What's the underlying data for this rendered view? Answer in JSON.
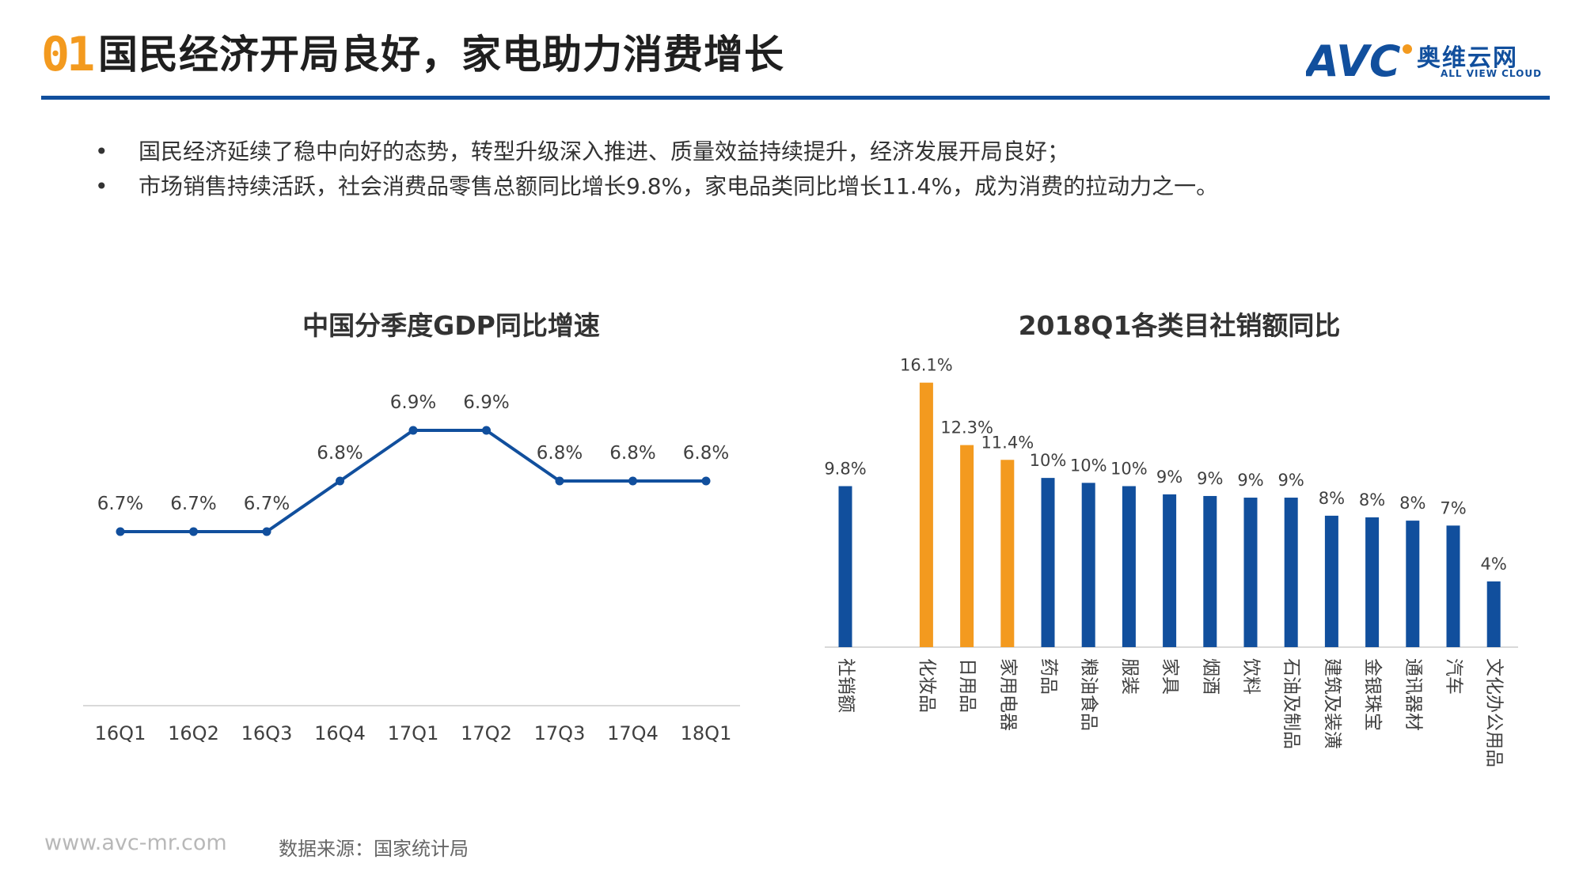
{
  "header": {
    "section_number": "01",
    "title": "国民经济开局良好，家电助力消费增长",
    "logo_mark": "AVC",
    "logo_name_zh": "奥维云网",
    "logo_name_en": "ALL VIEW CLOUD"
  },
  "bullets": [
    {
      "dot": "•",
      "text": "国民经济延续了稳中向好的态势，转型升级深入推进、质量效益持续提升，经济发展开局良好；"
    },
    {
      "dot": "•",
      "text": "市场销售持续活跃，社会消费品零售总额同比增长9.8%，家电品类同比增长11.4%，成为消费的拉动力之一。"
    }
  ],
  "colors": {
    "primary": "#114f9d",
    "accent": "#f39a1f",
    "axis": "#d9d9d9"
  },
  "chart_data": [
    {
      "type": "line",
      "title": "中国分季度GDP同比增速",
      "categories": [
        "16Q1",
        "16Q2",
        "16Q3",
        "16Q4",
        "17Q1",
        "17Q2",
        "17Q3",
        "17Q4",
        "18Q1"
      ],
      "values": [
        6.7,
        6.7,
        6.7,
        6.8,
        6.9,
        6.9,
        6.8,
        6.8,
        6.8
      ],
      "labels": [
        "6.7%",
        "6.7%",
        "6.7%",
        "6.8%",
        "6.9%",
        "6.9%",
        "6.8%",
        "6.8%",
        "6.8%"
      ],
      "ylim": [
        6.55,
        6.95
      ],
      "grid": false
    },
    {
      "type": "bar",
      "title": "2018Q1各类目社销额同比",
      "categories": [
        "社销额",
        "",
        "化妆品",
        "日用品",
        "家用电器",
        "药品",
        "粮油食品",
        "服装",
        "家具",
        "烟酒",
        "饮料",
        "石油及制品",
        "建筑及装潢",
        "金银珠宝",
        "通讯器材",
        "汽车",
        "文化办公用品"
      ],
      "values": [
        9.8,
        null,
        16.1,
        12.3,
        11.4,
        10.3,
        10.0,
        9.8,
        9.3,
        9.2,
        9.1,
        9.1,
        8.0,
        7.9,
        7.7,
        7.4,
        4.0
      ],
      "labels": [
        "9.8%",
        "",
        "16.1%",
        "12.3%",
        "11.4%",
        "10%",
        "10%",
        "10%",
        "9%",
        "9%",
        "9%",
        "9%",
        "8%",
        "8%",
        "8%",
        "7%",
        "4%"
      ],
      "highlight": [
        false,
        false,
        true,
        true,
        true,
        false,
        false,
        false,
        false,
        false,
        false,
        false,
        false,
        false,
        false,
        false,
        false
      ],
      "ylim": [
        0,
        17
      ],
      "grid": false
    }
  ],
  "footer": {
    "url": "www.avc-mr.com",
    "source": "数据来源：国家统计局"
  }
}
